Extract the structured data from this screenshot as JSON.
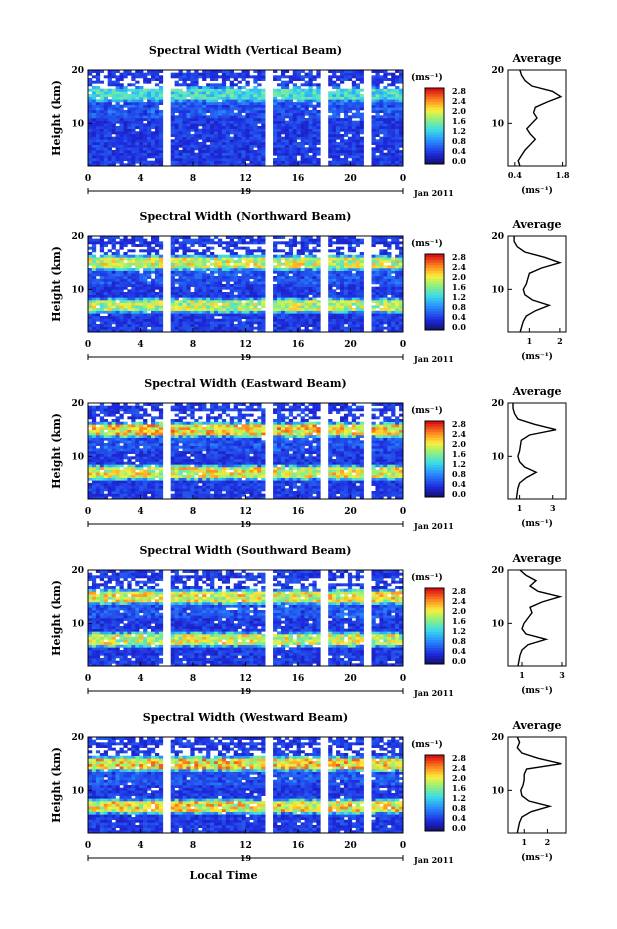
{
  "figure": {
    "xlabel": "Local Time",
    "ylabel": "Height (km)",
    "date_label": "Jan 2011",
    "day_label": "19",
    "unit_label": "(ms⁻¹)",
    "avg_title": "Average",
    "avg_xlabel": "(ms⁻¹)"
  },
  "chart_data": [
    {
      "type": "heatmap",
      "title": "Spectral Width (Vertical Beam)",
      "x_ticks": [
        "0",
        "4",
        "8",
        "12",
        "16",
        "20",
        "0"
      ],
      "y_ticks": [
        "20",
        "10"
      ],
      "xlim": [
        0,
        24
      ],
      "ylim": [
        2,
        20
      ],
      "colorbar_ticks": [
        "2.8",
        "2.4",
        "2.0",
        "1.6",
        "1.2",
        "0.8",
        "0.4",
        "0.0"
      ],
      "colorbar_range": [
        0,
        2.8
      ],
      "data_gaps_hours": [
        [
          5.6,
          6.4
        ],
        [
          13.4,
          14.2
        ],
        [
          17.7,
          18.3
        ],
        [
          21.0,
          21.5
        ]
      ],
      "bands": [
        {
          "height": 15.5,
          "value": 1.6
        }
      ],
      "average_profile": {
        "x_ticks": [
          "0.4",
          "1.8"
        ],
        "xlim": [
          0.2,
          1.9
        ],
        "y_ticks": [
          "20",
          "10"
        ],
        "height": [
          2,
          3,
          4,
          5,
          6,
          7,
          8,
          9,
          10,
          11,
          12,
          13,
          14,
          15,
          16,
          17,
          18,
          19,
          20
        ],
        "value": [
          0.55,
          0.5,
          0.6,
          0.7,
          0.85,
          1.0,
          0.85,
          0.75,
          0.9,
          1.05,
          0.95,
          1.0,
          1.35,
          1.75,
          1.5,
          0.9,
          0.7,
          0.6,
          0.55
        ]
      }
    },
    {
      "type": "heatmap",
      "title": "Spectral Width (Northward Beam)",
      "x_ticks": [
        "0",
        "4",
        "8",
        "12",
        "16",
        "20",
        "0"
      ],
      "y_ticks": [
        "20",
        "10"
      ],
      "xlim": [
        0,
        24
      ],
      "ylim": [
        2,
        20
      ],
      "colorbar_ticks": [
        "2.8",
        "2.4",
        "2.0",
        "1.6",
        "1.2",
        "0.8",
        "0.4",
        "0.0"
      ],
      "colorbar_range": [
        0,
        2.8
      ],
      "data_gaps_hours": [
        [
          5.6,
          6.4
        ],
        [
          13.4,
          14.2
        ],
        [
          17.7,
          18.3
        ],
        [
          21.0,
          21.5
        ]
      ],
      "bands": [
        {
          "height": 15.0,
          "value": 2.3
        },
        {
          "height": 7.0,
          "value": 2.2
        }
      ],
      "average_profile": {
        "x_ticks": [
          "1",
          "2"
        ],
        "xlim": [
          0.3,
          2.2
        ],
        "y_ticks": [
          "20",
          "10"
        ],
        "height": [
          2,
          3,
          4,
          5,
          6,
          7,
          8,
          9,
          10,
          11,
          12,
          13,
          14,
          15,
          16,
          17,
          18,
          19,
          20
        ],
        "value": [
          0.7,
          0.75,
          0.8,
          0.9,
          1.2,
          1.65,
          1.1,
          0.85,
          0.8,
          0.9,
          0.95,
          1.0,
          1.4,
          2.0,
          1.5,
          0.85,
          0.6,
          0.5,
          0.5
        ]
      }
    },
    {
      "type": "heatmap",
      "title": "Spectral Width (Eastward Beam)",
      "x_ticks": [
        "0",
        "4",
        "8",
        "12",
        "16",
        "20",
        "0"
      ],
      "y_ticks": [
        "20",
        "10"
      ],
      "xlim": [
        0,
        24
      ],
      "ylim": [
        2,
        20
      ],
      "colorbar_ticks": [
        "2.8",
        "2.4",
        "2.0",
        "1.6",
        "1.2",
        "0.8",
        "0.4",
        "0.0"
      ],
      "colorbar_range": [
        0,
        2.8
      ],
      "data_gaps_hours": [
        [
          5.6,
          6.4
        ],
        [
          13.4,
          14.2
        ],
        [
          17.7,
          18.3
        ],
        [
          21.0,
          21.5
        ]
      ],
      "bands": [
        {
          "height": 15.0,
          "value": 2.6
        },
        {
          "height": 7.0,
          "value": 2.4
        }
      ],
      "average_profile": {
        "x_ticks": [
          "1",
          "3"
        ],
        "xlim": [
          0.3,
          3.8
        ],
        "y_ticks": [
          "20",
          "10"
        ],
        "height": [
          2,
          3,
          4,
          5,
          6,
          7,
          8,
          9,
          10,
          11,
          12,
          13,
          14,
          15,
          16,
          17,
          18,
          19,
          20
        ],
        "value": [
          0.8,
          0.85,
          0.9,
          1.0,
          1.4,
          2.0,
          1.3,
          1.0,
          0.9,
          1.0,
          1.05,
          1.1,
          1.6,
          3.2,
          1.9,
          0.9,
          0.7,
          0.6,
          0.6
        ]
      }
    },
    {
      "type": "heatmap",
      "title": "Spectral Width (Southward Beam)",
      "x_ticks": [
        "0",
        "4",
        "8",
        "12",
        "16",
        "20",
        "0"
      ],
      "y_ticks": [
        "20",
        "10"
      ],
      "xlim": [
        0,
        24
      ],
      "ylim": [
        2,
        20
      ],
      "colorbar_ticks": [
        "2.8",
        "2.4",
        "2.0",
        "1.6",
        "1.2",
        "0.8",
        "0.4",
        "0.0"
      ],
      "colorbar_range": [
        0,
        2.8
      ],
      "data_gaps_hours": [
        [
          5.6,
          6.4
        ],
        [
          13.4,
          14.2
        ],
        [
          17.7,
          18.3
        ],
        [
          21.0,
          21.5
        ]
      ],
      "bands": [
        {
          "height": 15.0,
          "value": 2.4
        },
        {
          "height": 7.0,
          "value": 2.3
        }
      ],
      "average_profile": {
        "x_ticks": [
          "1",
          "3"
        ],
        "xlim": [
          0.3,
          3.2
        ],
        "y_ticks": [
          "20",
          "10"
        ],
        "height": [
          2,
          3,
          4,
          5,
          6,
          7,
          8,
          9,
          10,
          11,
          12,
          13,
          14,
          15,
          16,
          17,
          18,
          19,
          20
        ],
        "value": [
          0.8,
          0.85,
          0.9,
          1.0,
          1.3,
          2.2,
          1.2,
          1.0,
          1.1,
          1.3,
          1.5,
          1.4,
          2.0,
          2.9,
          1.8,
          1.4,
          1.7,
          1.2,
          0.9
        ]
      }
    },
    {
      "type": "heatmap",
      "title": "Spectral Width (Westward Beam)",
      "x_ticks": [
        "0",
        "4",
        "8",
        "12",
        "16",
        "20",
        "0"
      ],
      "y_ticks": [
        "20",
        "10"
      ],
      "xlim": [
        0,
        24
      ],
      "ylim": [
        2,
        20
      ],
      "colorbar_ticks": [
        "2.8",
        "2.4",
        "2.0",
        "1.6",
        "1.2",
        "0.8",
        "0.4",
        "0.0"
      ],
      "colorbar_range": [
        0,
        2.8
      ],
      "data_gaps_hours": [
        [
          5.6,
          6.4
        ],
        [
          13.4,
          14.2
        ],
        [
          17.7,
          18.3
        ],
        [
          21.0,
          21.5
        ]
      ],
      "bands": [
        {
          "height": 15.0,
          "value": 2.6
        },
        {
          "height": 7.0,
          "value": 2.5
        }
      ],
      "average_profile": {
        "x_ticks": [
          "1",
          "2"
        ],
        "xlim": [
          0.3,
          2.8
        ],
        "y_ticks": [
          "20",
          "10"
        ],
        "height": [
          2,
          3,
          4,
          5,
          6,
          7,
          8,
          9,
          10,
          11,
          12,
          13,
          14,
          15,
          16,
          17,
          18,
          19,
          20
        ],
        "value": [
          0.7,
          0.75,
          0.8,
          0.9,
          1.3,
          2.1,
          1.2,
          0.9,
          0.85,
          0.95,
          1.0,
          1.0,
          1.1,
          2.6,
          1.6,
          0.9,
          0.7,
          0.8,
          0.7
        ]
      }
    }
  ]
}
